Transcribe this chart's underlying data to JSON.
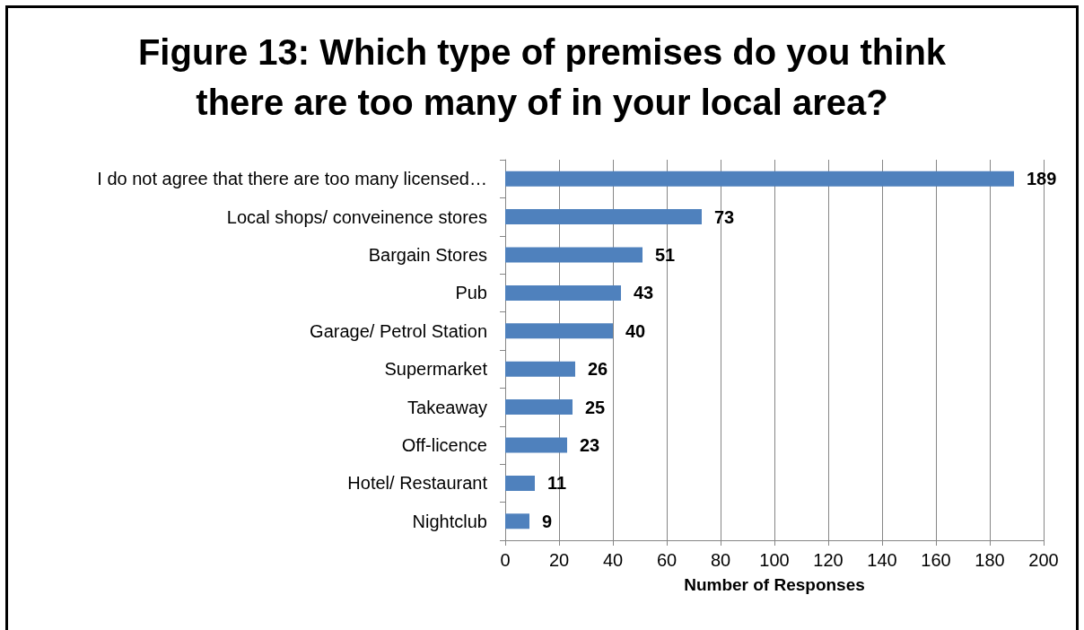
{
  "chart_data": {
    "type": "bar",
    "orientation": "horizontal",
    "title": "Figure 13: Which type of premises do you think there are too many of in your local area?",
    "xlabel": "Number of Responses",
    "categories": [
      "I do not agree that there are too many licensed…",
      "Local shops/ conveinence stores",
      "Bargain Stores",
      "Pub",
      "Garage/ Petrol Station",
      "Supermarket",
      "Takeaway",
      "Off-licence",
      "Hotel/ Restaurant",
      "Nightclub"
    ],
    "values": [
      189,
      73,
      51,
      43,
      40,
      26,
      25,
      23,
      11,
      9
    ],
    "color": "#4f81bd",
    "data_labels": true,
    "xlim": [
      0,
      200
    ],
    "xticks": [
      0,
      20,
      40,
      60,
      80,
      100,
      120,
      140,
      160,
      180,
      200
    ],
    "grid": "x"
  }
}
